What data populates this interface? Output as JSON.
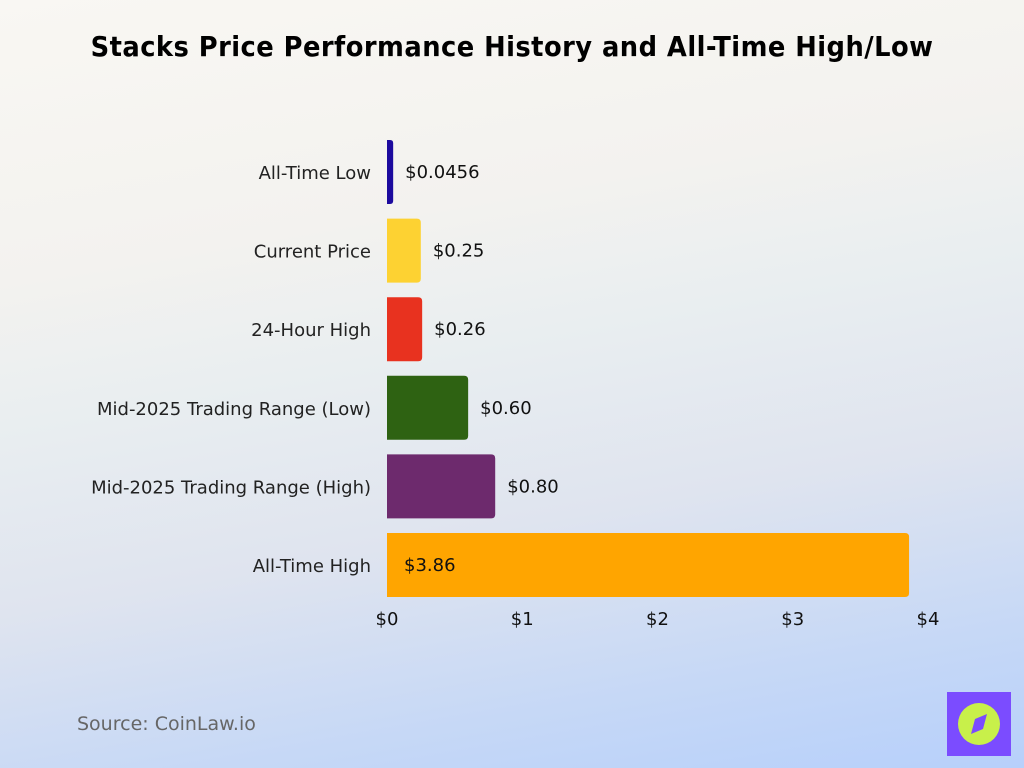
{
  "chart_data": {
    "type": "bar",
    "orientation": "horizontal",
    "title": "Stacks Price Performance History and All-Time High/Low",
    "categories": [
      "All-Time Low",
      "Current Price",
      "24-Hour High",
      "Mid-2025 Trading Range (Low)",
      "Mid-2025 Trading Range (High)",
      "All-Time High"
    ],
    "values": [
      0.0456,
      0.25,
      0.26,
      0.6,
      0.8,
      3.86
    ],
    "data_labels": [
      "$0.0456",
      "$0.25",
      "$0.26",
      "$0.60",
      "$0.80",
      "$3.86"
    ],
    "colors": [
      "#1c0a9e",
      "#fdd232",
      "#e8321f",
      "#2e6212",
      "#6d2a6d",
      "#ffa500"
    ],
    "xlim": [
      0,
      4
    ],
    "xticks": [
      0,
      1,
      2,
      3,
      4
    ],
    "xtick_labels": [
      "$0",
      "$1",
      "$2",
      "$3",
      "$4"
    ],
    "grid": false,
    "legend": "none"
  },
  "source": "Source: CoinLaw.io",
  "logo": {
    "icon": "compass-icon",
    "bg": "#7b4cff",
    "fg": "#c8f04a"
  }
}
